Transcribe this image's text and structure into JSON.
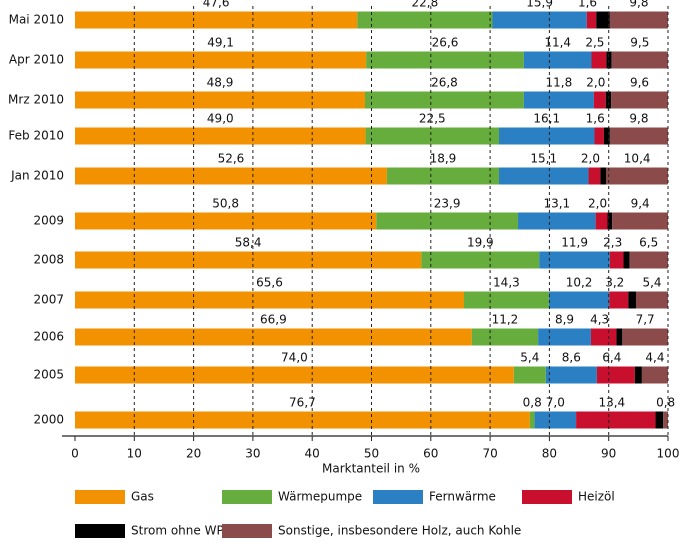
{
  "chart_data": {
    "type": "stacked-bar-horizontal",
    "xlabel": "Marktanteil in %",
    "categories": [
      "Mai 2010",
      "Apr 2010",
      "Mrz 2010",
      "Feb 2010",
      "Jan 2010",
      "2009",
      "2008",
      "2007",
      "2006",
      "2005",
      "2000"
    ],
    "series": [
      {
        "name": "Gas",
        "color": "#f39200",
        "values": [
          47.6,
          49.1,
          48.9,
          49.0,
          52.6,
          50.8,
          58.4,
          65.6,
          66.9,
          74.0,
          76.7
        ],
        "value_labels": [
          "47,6",
          "49,1",
          "48,9",
          "49,0",
          "52,6",
          "50,8",
          "58,4",
          "65,6",
          "66,9",
          "74,0",
          "76,7"
        ]
      },
      {
        "name": "Wärmepumpe",
        "color": "#67ad3e",
        "values": [
          22.8,
          26.6,
          26.8,
          22.5,
          18.9,
          23.9,
          19.9,
          14.3,
          11.2,
          5.4,
          0.8
        ],
        "value_labels": [
          "22,8",
          "26,6",
          "26,8",
          "22,5",
          "18,9",
          "23,9",
          "19,9",
          "14,3",
          "11,2",
          "5,4",
          "0,8"
        ]
      },
      {
        "name": "Fernwärme",
        "color": "#2b7fc3",
        "values": [
          15.9,
          11.4,
          11.8,
          16.1,
          15.1,
          13.1,
          11.9,
          10.2,
          8.9,
          8.6,
          7.0
        ],
        "value_labels": [
          "15,9",
          "11,4",
          "11,8",
          "16,1",
          "15,1",
          "13,1",
          "11,9",
          "10,2",
          "8,9",
          "8,6",
          "7,0"
        ]
      },
      {
        "name": "Heizöl",
        "color": "#c8102e",
        "values": [
          1.6,
          2.5,
          2.0,
          1.6,
          2.0,
          2.0,
          2.3,
          3.2,
          4.3,
          6.4,
          13.4
        ],
        "value_labels": [
          "1,6",
          "2,5",
          "2,0",
          "1,6",
          "2,0",
          "2,0",
          "2,3",
          "3,2",
          "4,3",
          "6,4",
          "13,4"
        ]
      },
      {
        "name": "Strom ohne WP",
        "color": "#000000",
        "values": [
          2.3,
          0.9,
          0.9,
          1.0,
          1.0,
          0.8,
          1.0,
          1.3,
          1.0,
          1.2,
          1.3
        ]
      },
      {
        "name": "Sonstige,  insbesondere Holz, auch Kohle",
        "color": "#8c4b4b",
        "values": [
          9.8,
          9.5,
          9.6,
          9.8,
          10.4,
          9.4,
          6.5,
          5.4,
          7.7,
          4.4,
          0.8
        ],
        "value_labels": [
          "9,8",
          "9,5",
          "9,6",
          "9,8",
          "10,4",
          "9,4",
          "6,5",
          "5,4",
          "7,7",
          "4,4",
          "0,8"
        ]
      }
    ],
    "xlim": [
      0,
      100
    ],
    "xticks": [
      0,
      10,
      20,
      30,
      40,
      50,
      60,
      70,
      80,
      90,
      100
    ],
    "grid": true
  }
}
